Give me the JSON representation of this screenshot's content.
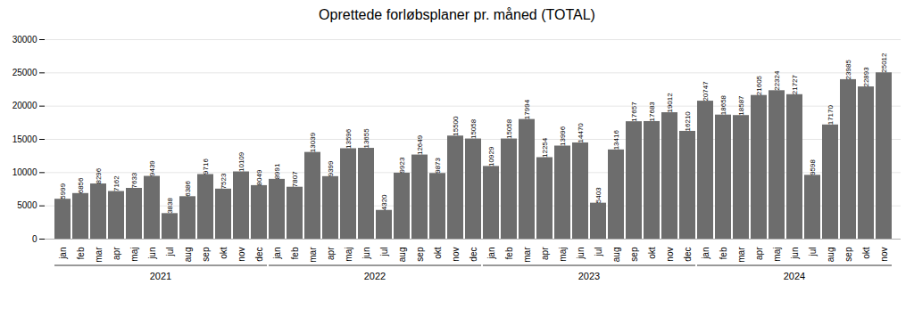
{
  "chart_data": {
    "type": "bar",
    "title": "Oprettede forløbsplaner pr. måned (TOTAL)",
    "categories": [
      "jan",
      "feb",
      "mar",
      "apr",
      "maj",
      "jun",
      "jul",
      "aug",
      "sep",
      "okt",
      "nov",
      "dec",
      "jan",
      "feb",
      "mar",
      "apr",
      "maj",
      "jun",
      "jul",
      "aug",
      "sep",
      "okt",
      "nov",
      "dec",
      "jan",
      "feb",
      "mar",
      "apr",
      "maj",
      "jun",
      "jul",
      "aug",
      "sep",
      "okt",
      "nov",
      "dec",
      "jan",
      "feb",
      "mar",
      "apr",
      "maj",
      "jun",
      "jul",
      "aug",
      "sep",
      "okt",
      "nov"
    ],
    "values": [
      5999,
      6856,
      8296,
      7162,
      7633,
      9439,
      3838,
      6386,
      9716,
      7523,
      10109,
      8049,
      8991,
      7807,
      13039,
      9399,
      13596,
      13655,
      4320,
      9923,
      12649,
      9873,
      15500,
      15058,
      10929,
      15058,
      17994,
      12254,
      13996,
      14470,
      5403,
      13416,
      17657,
      17683,
      19012,
      16210,
      20747,
      18658,
      18587,
      21605,
      22324,
      21727,
      9598,
      17170,
      23985,
      22893,
      25012
    ],
    "color": "#6d6d6d",
    "ylim": [
      0,
      30000
    ],
    "yticks": [
      0,
      5000,
      10000,
      15000,
      20000,
      25000,
      30000
    ],
    "grid": true,
    "data_labels": true,
    "groups": [
      {
        "label": "2021",
        "size": 12
      },
      {
        "label": "2022",
        "size": 12
      },
      {
        "label": "2023",
        "size": 12
      },
      {
        "label": "2024",
        "size": 11
      }
    ]
  }
}
